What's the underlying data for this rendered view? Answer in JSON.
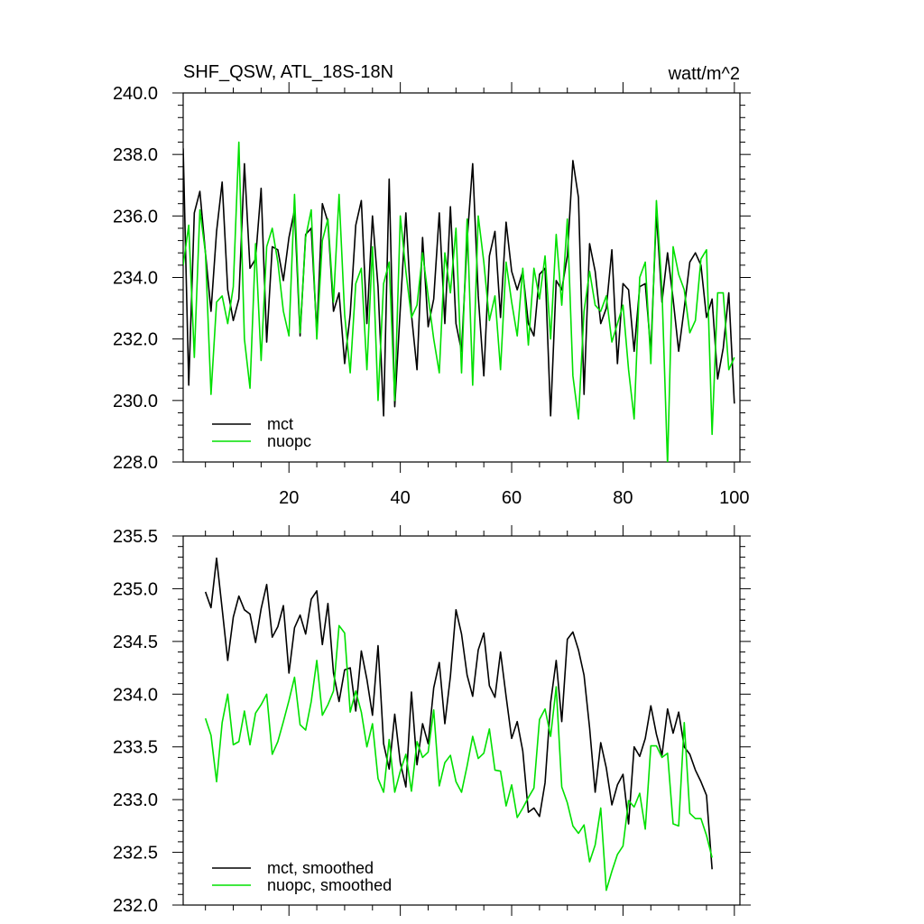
{
  "figure": {
    "title_left": "SHF_QSW, ATL_18S-18N",
    "title_right": "watt/m^2"
  },
  "colors": {
    "mct": "#000000",
    "nuopc": "#00e000",
    "axis": "#000000"
  },
  "chart_data": [
    {
      "type": "line",
      "title": "SHF_QSW, ATL_18S-18N",
      "units": "watt/m^2",
      "xlim": [
        1,
        101
      ],
      "ylim": [
        228.0,
        240.0
      ],
      "x_ticks": [
        20,
        40,
        60,
        80,
        100
      ],
      "x_tick_labels": [
        "20",
        "40",
        "60",
        "80",
        "100"
      ],
      "y_ticks": [
        228.0,
        230.0,
        232.0,
        234.0,
        236.0,
        238.0,
        240.0
      ],
      "y_tick_labels": [
        "228.0",
        "230.0",
        "232.0",
        "234.0",
        "236.0",
        "238.0",
        "240.0"
      ],
      "legend_location": "bottom-left",
      "x_start": 1,
      "series": [
        {
          "name": "mct",
          "color": "#000000",
          "values": [
            238.2,
            230.5,
            236.1,
            236.8,
            234.8,
            232.9,
            235.5,
            237.1,
            233.6,
            232.6,
            233.3,
            237.7,
            234.3,
            234.6,
            236.9,
            231.9,
            235.0,
            234.9,
            233.9,
            235.3,
            236.2,
            232.1,
            235.4,
            235.6,
            232.2,
            236.4,
            235.8,
            232.9,
            233.5,
            231.2,
            232.8,
            235.7,
            236.5,
            232.5,
            236.0,
            233.7,
            229.5,
            237.2,
            229.8,
            233.0,
            236.1,
            232.8,
            231.0,
            235.3,
            232.4,
            233.3,
            236.1,
            232.5,
            236.3,
            232.5,
            231.6,
            235.2,
            237.7,
            233.4,
            230.8,
            234.7,
            235.5,
            232.7,
            235.8,
            234.2,
            233.6,
            234.2,
            232.5,
            232.1,
            234.1,
            234.3,
            229.5,
            233.9,
            233.6,
            234.7,
            237.8,
            236.6,
            230.2,
            235.1,
            234.2,
            232.5,
            233.0,
            234.9,
            231.2,
            233.8,
            233.6,
            231.6,
            233.7,
            233.8,
            231.6,
            236.1,
            233.2,
            234.8,
            233.3,
            231.6,
            233.0,
            234.5,
            234.8,
            234.4,
            232.7,
            233.3,
            230.7,
            231.7,
            233.5,
            229.9
          ]
        },
        {
          "name": "nuopc",
          "color": "#00e000",
          "values": [
            234.4,
            235.7,
            231.4,
            236.2,
            234.8,
            230.2,
            233.2,
            233.4,
            232.5,
            233.7,
            238.4,
            232.0,
            230.4,
            235.1,
            231.3,
            235.0,
            235.6,
            234.5,
            232.9,
            232.1,
            236.7,
            232.2,
            235.3,
            236.2,
            232.0,
            235.2,
            235.9,
            233.2,
            236.7,
            232.8,
            230.9,
            233.8,
            234.3,
            231.0,
            235.0,
            230.0,
            233.8,
            234.5,
            230.0,
            236.0,
            234.2,
            232.7,
            233.1,
            234.8,
            233.4,
            232.0,
            230.9,
            234.8,
            233.5,
            235.6,
            230.9,
            235.9,
            230.5,
            236.0,
            234.5,
            232.6,
            233.4,
            231.0,
            234.5,
            233.2,
            232.1,
            234.3,
            231.8,
            234.3,
            233.3,
            234.7,
            232.0,
            235.4,
            233.1,
            235.9,
            230.8,
            229.4,
            232.9,
            234.2,
            233.1,
            232.9,
            233.4,
            231.9,
            232.5,
            233.1,
            231.0,
            229.4,
            234.0,
            234.5,
            231.2,
            236.5,
            233.6,
            227.9,
            235.0,
            234.1,
            233.6,
            232.2,
            232.6,
            234.6,
            234.9,
            228.9,
            233.5,
            233.5,
            231.0,
            231.4
          ]
        }
      ]
    },
    {
      "type": "line",
      "xlim": [
        1,
        101
      ],
      "ylim": [
        232.0,
        235.5
      ],
      "x_ticks": [
        20,
        40,
        60,
        80,
        100
      ],
      "y_ticks": [
        232.0,
        232.5,
        233.0,
        233.5,
        234.0,
        234.5,
        235.0,
        235.5
      ],
      "y_tick_labels": [
        "232.0",
        "232.5",
        "233.0",
        "233.5",
        "234.0",
        "234.5",
        "235.0",
        "235.5"
      ],
      "legend_location": "bottom-left",
      "x_start": 5,
      "series": [
        {
          "name": "mct, smoothed",
          "color": "#000000",
          "values": [
            234.97,
            234.82,
            235.29,
            234.81,
            234.32,
            234.73,
            234.93,
            234.8,
            234.76,
            234.49,
            234.81,
            235.04,
            234.54,
            234.64,
            234.84,
            234.2,
            234.63,
            234.75,
            234.57,
            234.9,
            234.98,
            234.47,
            234.86,
            234.2,
            233.93,
            234.23,
            234.25,
            233.84,
            234.41,
            234.14,
            233.8,
            234.46,
            233.53,
            233.29,
            233.81,
            233.35,
            233.12,
            234.02,
            233.33,
            233.72,
            233.53,
            234.06,
            234.3,
            233.72,
            234.17,
            234.8,
            234.57,
            234.18,
            233.98,
            234.42,
            234.58,
            234.08,
            233.97,
            234.4,
            233.98,
            233.58,
            233.74,
            233.46,
            232.88,
            232.92,
            232.84,
            233.16,
            233.92,
            234.32,
            233.74,
            234.52,
            234.59,
            234.42,
            234.18,
            233.68,
            233.07,
            233.54,
            233.3,
            232.95,
            233.14,
            233.24,
            232.77,
            233.5,
            233.41,
            233.58,
            233.89,
            233.62,
            233.42,
            233.86,
            233.63,
            233.83,
            233.5,
            233.43,
            233.28,
            233.17,
            233.04,
            232.34
          ]
        },
        {
          "name": "nuopc, smoothed",
          "color": "#00e000",
          "values": [
            233.77,
            233.61,
            233.17,
            233.73,
            234.0,
            233.52,
            233.55,
            233.84,
            233.52,
            233.82,
            233.9,
            234.0,
            233.43,
            233.55,
            233.74,
            233.94,
            234.16,
            233.71,
            233.66,
            233.93,
            234.32,
            233.8,
            233.9,
            234.03,
            234.65,
            234.58,
            233.83,
            234.03,
            233.83,
            233.5,
            233.72,
            233.2,
            233.07,
            233.57,
            233.07,
            233.27,
            233.43,
            233.08,
            233.55,
            233.4,
            233.45,
            233.85,
            233.13,
            233.35,
            233.42,
            233.17,
            233.07,
            233.32,
            233.6,
            233.39,
            233.44,
            233.67,
            233.28,
            233.27,
            232.94,
            233.14,
            232.83,
            232.92,
            233.02,
            233.11,
            233.76,
            233.86,
            233.6,
            234.07,
            233.12,
            232.97,
            232.75,
            232.68,
            232.76,
            232.41,
            232.57,
            232.92,
            232.14,
            232.32,
            232.48,
            232.56,
            232.99,
            232.93,
            233.06,
            232.72,
            233.51,
            233.51,
            233.4,
            233.44,
            232.77,
            232.75,
            233.73,
            232.87,
            232.82,
            232.82,
            232.66,
            232.45
          ]
        }
      ]
    }
  ]
}
